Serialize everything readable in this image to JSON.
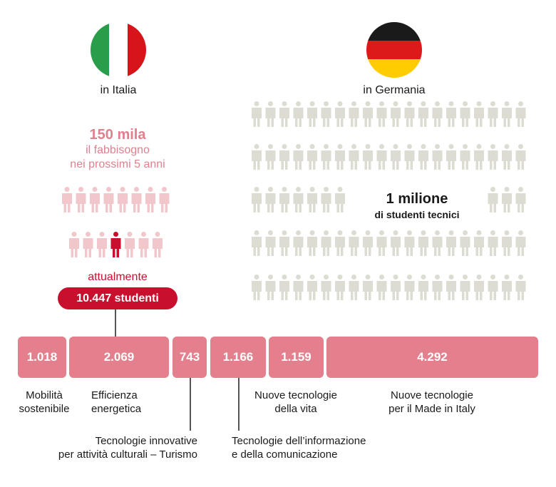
{
  "italy": {
    "country_label": "in Italia",
    "need_value": "150 mila",
    "need_text_1": "il fabbisogno",
    "need_text_2": "nei prossimi 5 anni",
    "current_label": "attualmente",
    "current_value": "10.447 studenti"
  },
  "germany": {
    "country_label": "in Germania",
    "students_value": "1 milione",
    "students_text": "di studenti tecnici"
  },
  "colors": {
    "italy_need": "#f2c7cc",
    "italy_current": "#c8102e",
    "germany_people": "#dcdcd2",
    "bars": "#e4808d"
  },
  "chart_data": {
    "type": "bar",
    "categories": [
      "Mobilità sostenibile",
      "Efficienza energetica",
      "Tecnologie innovative per attività culturali – Turismo",
      "Tecnologie dell’informazione e della comunicazione",
      "Nuove tecnologie della vita",
      "Nuove tecnologie per il Made in Italy"
    ],
    "values": [
      1018,
      2069,
      743,
      1166,
      1159,
      4292
    ],
    "value_labels": [
      "1.018",
      "2.069",
      "743",
      "1.166",
      "1.159",
      "4.292"
    ]
  },
  "bar_labels": {
    "mobilita": [
      "Mobilità",
      "sostenibile"
    ],
    "efficienza": [
      "Efficienza",
      "energetica"
    ],
    "turismo": [
      "Tecnologie innovative",
      "per attività culturali – Turismo"
    ],
    "ict": [
      "Tecnologie dell’informazione",
      "e della comunicazione"
    ],
    "vita": [
      "Nuove tecnologie",
      "della vita"
    ],
    "made_in_italy": [
      "Nuove tecnologie",
      "per il Made in Italy"
    ]
  }
}
